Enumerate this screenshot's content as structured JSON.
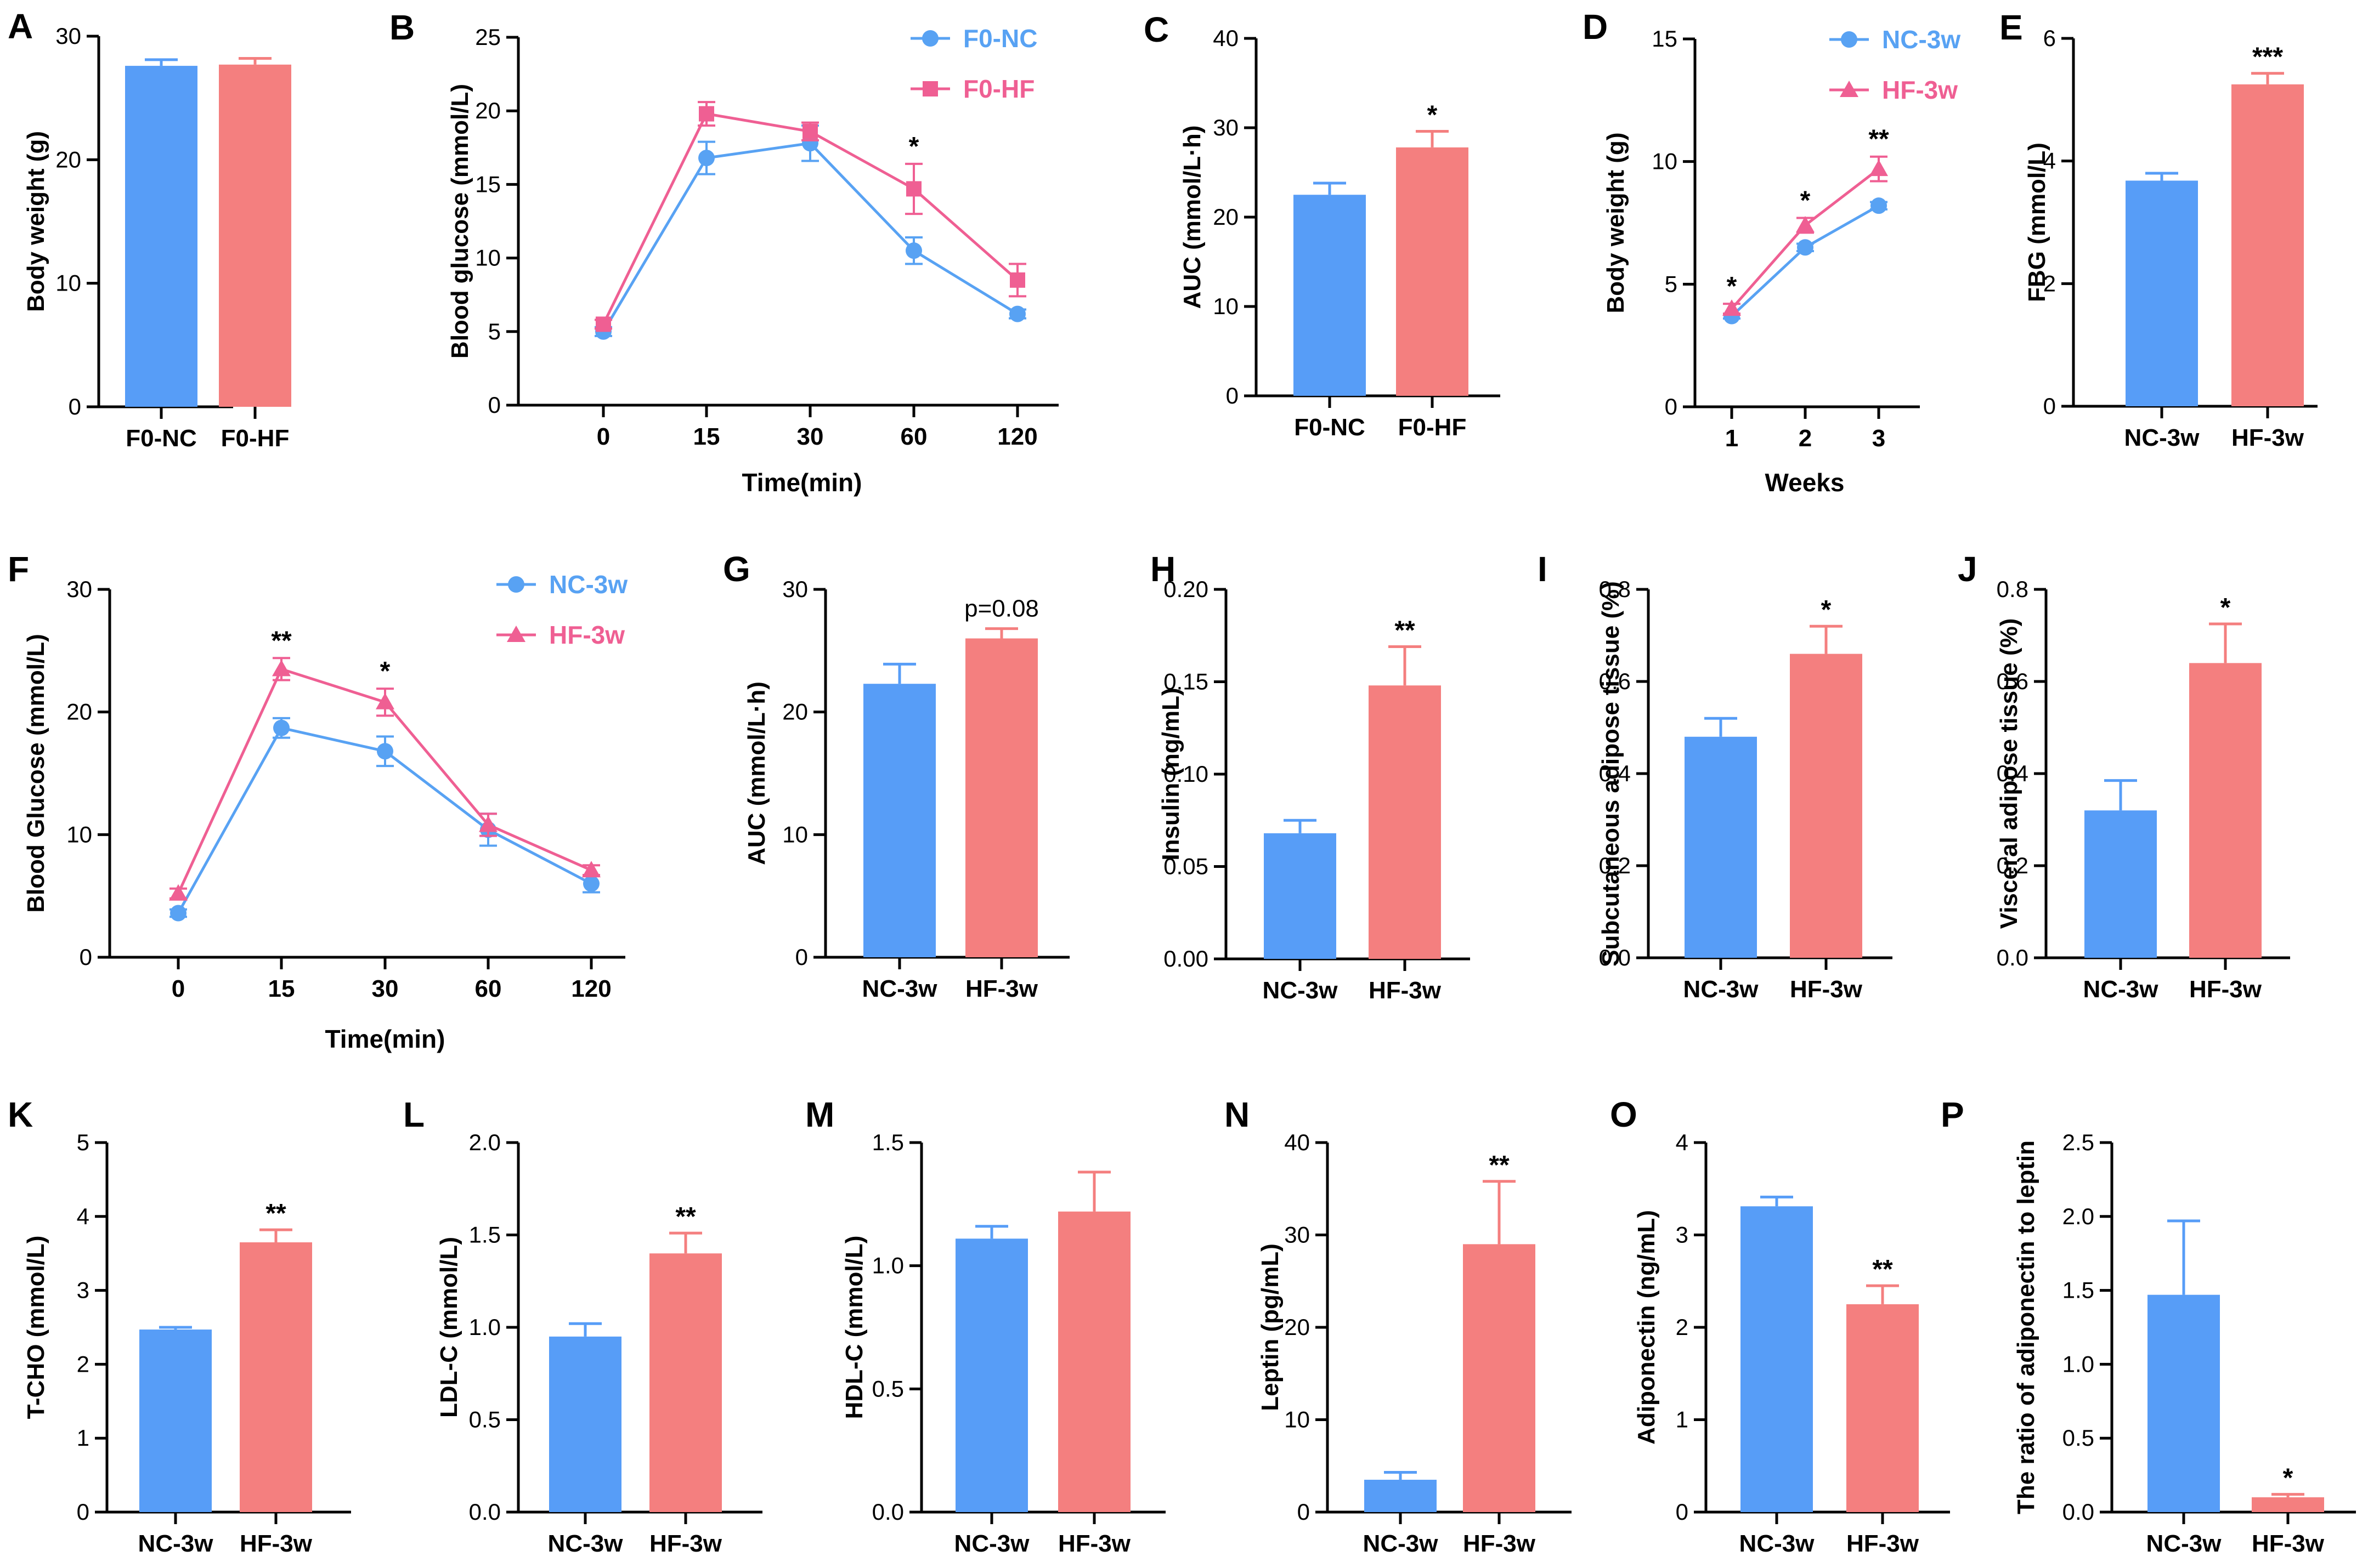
{
  "colors": {
    "nc": "#579df7",
    "hf": "#f47f7f",
    "nc_line": "#58a2f3",
    "hf_line": "#ef5f93",
    "axis": "#000000"
  },
  "chart_data": [
    {
      "id": "A",
      "letter": "A",
      "type": "bar",
      "ylabel": "Body weight (g)",
      "xlabel": "",
      "ylim": [
        0,
        30
      ],
      "yticks": [
        "0",
        "10",
        "20",
        "30"
      ],
      "categories": [
        "F0-NC",
        "F0-HF"
      ],
      "values": [
        27.6,
        27.7
      ],
      "errors": [
        0.5,
        0.5
      ],
      "sig": [
        "",
        ""
      ]
    },
    {
      "id": "B",
      "letter": "B",
      "type": "line",
      "ylabel": "Blood glucose (mmol/L)",
      "xlabel": "Time(min)",
      "ylim": [
        0,
        25
      ],
      "yticks": [
        "0",
        "5",
        "10",
        "15",
        "20",
        "25"
      ],
      "categories": [
        "0",
        "15",
        "30",
        "60",
        "120"
      ],
      "marker_nc": "circle",
      "marker_hf": "square",
      "legend": {
        "nc": "F0-NC",
        "hf": "F0-HF"
      },
      "series": [
        {
          "name": "F0-NC",
          "values": [
            5.0,
            16.8,
            17.8,
            10.5,
            6.2
          ],
          "errors": [
            0.3,
            1.1,
            1.2,
            0.9,
            0.3
          ]
        },
        {
          "name": "F0-HF",
          "values": [
            5.5,
            19.8,
            18.6,
            14.7,
            8.5
          ],
          "errors": [
            0.3,
            0.8,
            0.6,
            1.7,
            1.1
          ]
        }
      ],
      "sig": [
        "",
        "",
        "",
        "*",
        ""
      ]
    },
    {
      "id": "C",
      "letter": "C",
      "type": "bar",
      "ylabel": "AUC (mmol/L·h)",
      "xlabel": "",
      "ylim": [
        0,
        40
      ],
      "yticks": [
        "0",
        "10",
        "20",
        "30",
        "40"
      ],
      "categories": [
        "F0-NC",
        "F0-HF"
      ],
      "values": [
        22.5,
        27.8
      ],
      "errors": [
        1.3,
        1.8
      ],
      "sig": [
        "",
        "*"
      ]
    },
    {
      "id": "D",
      "letter": "D",
      "type": "line",
      "ylabel": "Body weight (g)",
      "xlabel": "Weeks",
      "ylim": [
        0,
        15
      ],
      "yticks": [
        "0",
        "5",
        "10",
        "15"
      ],
      "categories": [
        "1",
        "2",
        "3"
      ],
      "marker_nc": "circle",
      "marker_hf": "triangle",
      "legend": {
        "nc": "NC-3w",
        "hf": "HF-3w"
      },
      "series": [
        {
          "name": "NC-3w",
          "values": [
            3.7,
            6.5,
            8.2
          ],
          "errors": [
            0.1,
            0.15,
            0.15
          ]
        },
        {
          "name": "HF-3w",
          "values": [
            4.0,
            7.4,
            9.7
          ],
          "errors": [
            0.2,
            0.3,
            0.5
          ]
        }
      ],
      "sig": [
        "*",
        "*",
        "**"
      ]
    },
    {
      "id": "E",
      "letter": "E",
      "type": "bar",
      "ylabel": "FBG (mmol/L)",
      "xlabel": "",
      "ylim": [
        0,
        6
      ],
      "yticks": [
        "0",
        "2",
        "4",
        "6"
      ],
      "categories": [
        "NC-3w",
        "HF-3w"
      ],
      "values": [
        3.68,
        5.25
      ],
      "errors": [
        0.12,
        0.18
      ],
      "sig": [
        "",
        "***"
      ]
    },
    {
      "id": "F",
      "letter": "F",
      "type": "line",
      "ylabel": "Blood Glucose (mmol/L)",
      "xlabel": "Time(min)",
      "ylim": [
        0,
        30
      ],
      "yticks": [
        "0",
        "10",
        "20",
        "30"
      ],
      "categories": [
        "0",
        "15",
        "30",
        "60",
        "120"
      ],
      "marker_nc": "circle",
      "marker_hf": "triangle",
      "legend": {
        "nc": "NC-3w",
        "hf": "HF-3w"
      },
      "series": [
        {
          "name": "NC-3w",
          "values": [
            3.6,
            18.7,
            16.8,
            10.4,
            6.0
          ],
          "errors": [
            0.3,
            0.8,
            1.2,
            1.3,
            0.7
          ]
        },
        {
          "name": "HF-3w",
          "values": [
            5.2,
            23.5,
            20.8,
            10.8,
            7.1
          ],
          "errors": [
            0.4,
            0.9,
            1.1,
            0.9,
            0.4
          ]
        }
      ],
      "sig": [
        "",
        "**",
        "*",
        "",
        ""
      ]
    },
    {
      "id": "G",
      "letter": "G",
      "type": "bar",
      "ylabel": "AUC (mmol/L·h)",
      "xlabel": "",
      "ylim": [
        0,
        30
      ],
      "yticks": [
        "0",
        "10",
        "20",
        "30"
      ],
      "categories": [
        "NC-3w",
        "HF-3w"
      ],
      "values": [
        22.3,
        26.0
      ],
      "errors": [
        1.6,
        0.8
      ],
      "sig": [
        "",
        "p=0.08"
      ]
    },
    {
      "id": "H",
      "letter": "H",
      "type": "bar",
      "ylabel": "Insulin (ng/mL)",
      "xlabel": "",
      "ylim": [
        0,
        0.2
      ],
      "yticks": [
        "0.00",
        "0.05",
        "0.10",
        "0.15",
        "0.20"
      ],
      "categories": [
        "NC-3w",
        "HF-3w"
      ],
      "values": [
        0.068,
        0.148
      ],
      "errors": [
        0.007,
        0.021
      ],
      "sig": [
        "",
        "**"
      ]
    },
    {
      "id": "I",
      "letter": "I",
      "type": "bar",
      "ylabel": "Subcutaneous adipose tissue (%)",
      "xlabel": "",
      "ylim": [
        0,
        0.8
      ],
      "yticks": [
        "0.0",
        "0.2",
        "0.4",
        "0.6",
        "0.8"
      ],
      "categories": [
        "NC-3w",
        "HF-3w"
      ],
      "values": [
        0.48,
        0.66
      ],
      "errors": [
        0.04,
        0.06
      ],
      "sig": [
        "",
        "*"
      ]
    },
    {
      "id": "J",
      "letter": "J",
      "type": "bar",
      "ylabel": "Visceral adipose tissue (%)",
      "xlabel": "",
      "ylim": [
        0,
        0.8
      ],
      "yticks": [
        "0.0",
        "0.2",
        "0.4",
        "0.6",
        "0.8"
      ],
      "categories": [
        "NC-3w",
        "HF-3w"
      ],
      "values": [
        0.32,
        0.64
      ],
      "errors": [
        0.065,
        0.085
      ],
      "sig": [
        "",
        "*"
      ]
    },
    {
      "id": "K",
      "letter": "K",
      "type": "bar",
      "ylabel": "T-CHO (mmol/L)",
      "xlabel": "",
      "ylim": [
        0,
        5
      ],
      "yticks": [
        "0",
        "1",
        "2",
        "3",
        "4",
        "5"
      ],
      "categories": [
        "NC-3w",
        "HF-3w"
      ],
      "values": [
        2.47,
        3.65
      ],
      "errors": [
        0.03,
        0.17
      ],
      "sig": [
        "",
        "**"
      ]
    },
    {
      "id": "L",
      "letter": "L",
      "type": "bar",
      "ylabel": "LDL-C (mmol/L)",
      "xlabel": "",
      "ylim": [
        0,
        2.0
      ],
      "yticks": [
        "0.0",
        "0.5",
        "1.0",
        "1.5",
        "2.0"
      ],
      "categories": [
        "NC-3w",
        "HF-3w"
      ],
      "values": [
        0.95,
        1.4
      ],
      "errors": [
        0.07,
        0.11
      ],
      "sig": [
        "",
        "**"
      ]
    },
    {
      "id": "M",
      "letter": "M",
      "type": "bar",
      "ylabel": "HDL-C (mmol/L)",
      "xlabel": "",
      "ylim": [
        0,
        1.5
      ],
      "yticks": [
        "0.0",
        "0.5",
        "1.0",
        "1.5"
      ],
      "categories": [
        "NC-3w",
        "HF-3w"
      ],
      "values": [
        1.11,
        1.22
      ],
      "errors": [
        0.05,
        0.16
      ],
      "sig": [
        "",
        ""
      ]
    },
    {
      "id": "N",
      "letter": "N",
      "type": "bar",
      "ylabel": "Leptin (pg/mL)",
      "xlabel": "",
      "ylim": [
        0,
        40
      ],
      "yticks": [
        "0",
        "10",
        "20",
        "30",
        "40"
      ],
      "categories": [
        "NC-3w",
        "HF-3w"
      ],
      "values": [
        3.5,
        29.0
      ],
      "errors": [
        0.8,
        6.8
      ],
      "sig": [
        "",
        "**"
      ]
    },
    {
      "id": "O",
      "letter": "O",
      "type": "bar",
      "ylabel": "Adiponectin (ng/mL)",
      "xlabel": "",
      "ylim": [
        0,
        4
      ],
      "yticks": [
        "0",
        "1",
        "2",
        "3",
        "4"
      ],
      "categories": [
        "NC-3w",
        "HF-3w"
      ],
      "values": [
        3.31,
        2.25
      ],
      "errors": [
        0.1,
        0.2
      ],
      "sig": [
        "",
        "**"
      ]
    },
    {
      "id": "P",
      "letter": "P",
      "type": "bar",
      "ylabel": "The ratio of adiponectin to leptin",
      "xlabel": "",
      "ylim": [
        0,
        2.5
      ],
      "yticks": [
        "0.0",
        "0.5",
        "1.0",
        "1.5",
        "2.0",
        "2.5"
      ],
      "categories": [
        "NC-3w",
        "HF-3w"
      ],
      "values": [
        1.47,
        0.1
      ],
      "errors": [
        0.5,
        0.02
      ],
      "sig": [
        "",
        "*"
      ]
    }
  ]
}
